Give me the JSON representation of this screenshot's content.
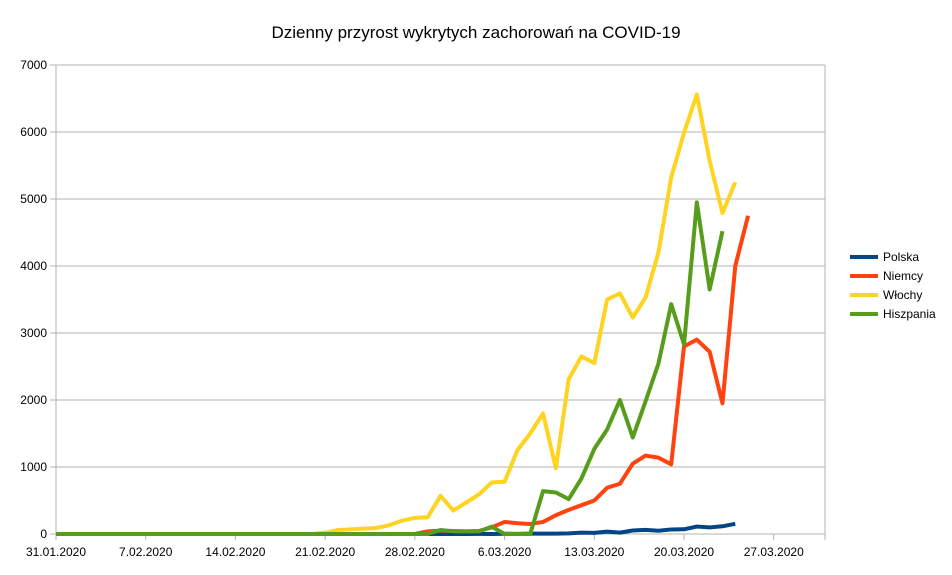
{
  "chart_data": {
    "type": "line",
    "title": "Dzienny przyrost wykrytych zachorowań na COVID-19",
    "xlabel": "",
    "ylabel": "",
    "x_start": "31.01.2020",
    "x_end": "31.03.2020",
    "xlim": [
      "31.01.2020",
      "31.03.2020"
    ],
    "ylim": [
      0,
      7000
    ],
    "y_ticks": [
      "0",
      "1000",
      "2000",
      "3000",
      "4000",
      "5000",
      "6000",
      "7000"
    ],
    "x_ticks": [
      "31.01.2020",
      "7.02.2020",
      "14.02.2020",
      "21.02.2020",
      "28.02.2020",
      "6.03.2020",
      "13.03.2020",
      "20.03.2020",
      "27.03.2020"
    ],
    "grid": true,
    "legend_position": "right",
    "series": [
      {
        "name": "Polska",
        "color": "#004586",
        "points": [
          [
            "31.01.2020",
            0
          ],
          [
            "1.02.2020",
            0
          ],
          [
            "2.02.2020",
            0
          ],
          [
            "3.02.2020",
            0
          ],
          [
            "4.02.2020",
            0
          ],
          [
            "5.02.2020",
            0
          ],
          [
            "6.02.2020",
            0
          ],
          [
            "7.02.2020",
            0
          ],
          [
            "8.02.2020",
            0
          ],
          [
            "9.02.2020",
            0
          ],
          [
            "10.02.2020",
            0
          ],
          [
            "11.02.2020",
            0
          ],
          [
            "12.02.2020",
            0
          ],
          [
            "13.02.2020",
            0
          ],
          [
            "14.02.2020",
            0
          ],
          [
            "15.02.2020",
            0
          ],
          [
            "16.02.2020",
            0
          ],
          [
            "17.02.2020",
            0
          ],
          [
            "18.02.2020",
            0
          ],
          [
            "19.02.2020",
            0
          ],
          [
            "20.02.2020",
            0
          ],
          [
            "21.02.2020",
            0
          ],
          [
            "22.02.2020",
            0
          ],
          [
            "23.02.2020",
            0
          ],
          [
            "24.02.2020",
            0
          ],
          [
            "25.02.2020",
            0
          ],
          [
            "26.02.2020",
            0
          ],
          [
            "27.02.2020",
            0
          ],
          [
            "28.02.2020",
            0
          ],
          [
            "29.02.2020",
            0
          ],
          [
            "1.03.2020",
            0
          ],
          [
            "2.03.2020",
            0
          ],
          [
            "3.03.2020",
            0
          ],
          [
            "4.03.2020",
            1
          ],
          [
            "5.03.2020",
            0
          ],
          [
            "6.03.2020",
            4
          ],
          [
            "7.03.2020",
            1
          ],
          [
            "8.03.2020",
            5
          ],
          [
            "9.03.2020",
            6
          ],
          [
            "10.03.2020",
            5
          ],
          [
            "11.03.2020",
            9
          ],
          [
            "12.03.2020",
            20
          ],
          [
            "13.03.2020",
            17
          ],
          [
            "14.03.2020",
            36
          ],
          [
            "15.03.2020",
            21
          ],
          [
            "16.03.2020",
            52
          ],
          [
            "17.03.2020",
            61
          ],
          [
            "18.03.2020",
            49
          ],
          [
            "19.03.2020",
            68
          ],
          [
            "20.03.2020",
            70
          ],
          [
            "21.03.2020",
            111
          ],
          [
            "22.03.2020",
            98
          ],
          [
            "23.03.2020",
            115
          ],
          [
            "24.03.2020",
            152
          ]
        ]
      },
      {
        "name": "Niemcy",
        "color": "#ff420e",
        "points": [
          [
            "31.01.2020",
            0
          ],
          [
            "1.02.2020",
            0
          ],
          [
            "2.02.2020",
            0
          ],
          [
            "3.02.2020",
            0
          ],
          [
            "4.02.2020",
            0
          ],
          [
            "5.02.2020",
            0
          ],
          [
            "6.02.2020",
            0
          ],
          [
            "7.02.2020",
            0
          ],
          [
            "8.02.2020",
            0
          ],
          [
            "9.02.2020",
            0
          ],
          [
            "10.02.2020",
            0
          ],
          [
            "11.02.2020",
            0
          ],
          [
            "12.02.2020",
            0
          ],
          [
            "13.02.2020",
            0
          ],
          [
            "14.02.2020",
            0
          ],
          [
            "15.02.2020",
            0
          ],
          [
            "16.02.2020",
            0
          ],
          [
            "17.02.2020",
            0
          ],
          [
            "18.02.2020",
            0
          ],
          [
            "19.02.2020",
            0
          ],
          [
            "20.02.2020",
            0
          ],
          [
            "21.02.2020",
            0
          ],
          [
            "22.02.2020",
            0
          ],
          [
            "23.02.2020",
            0
          ],
          [
            "24.02.2020",
            0
          ],
          [
            "25.02.2020",
            0
          ],
          [
            "26.02.2020",
            0
          ],
          [
            "27.02.2020",
            0
          ],
          [
            "28.02.2020",
            0
          ],
          [
            "29.02.2020",
            40
          ],
          [
            "1.03.2020",
            50
          ],
          [
            "2.03.2020",
            45
          ],
          [
            "3.03.2020",
            40
          ],
          [
            "4.03.2020",
            45
          ],
          [
            "5.03.2020",
            100
          ],
          [
            "6.03.2020",
            180
          ],
          [
            "7.03.2020",
            160
          ],
          [
            "8.03.2020",
            150
          ],
          [
            "9.03.2020",
            180
          ],
          [
            "10.03.2020",
            280
          ],
          [
            "11.03.2020",
            360
          ],
          [
            "12.03.2020",
            430
          ],
          [
            "13.03.2020",
            500
          ],
          [
            "14.03.2020",
            690
          ],
          [
            "15.03.2020",
            750
          ],
          [
            "16.03.2020",
            1050
          ],
          [
            "17.03.2020",
            1170
          ],
          [
            "18.03.2020",
            1140
          ],
          [
            "19.03.2020",
            1040
          ],
          [
            "20.03.2020",
            2800
          ],
          [
            "21.03.2020",
            2900
          ],
          [
            "22.03.2020",
            2720
          ],
          [
            "23.03.2020",
            1950
          ],
          [
            "24.03.2020",
            4000
          ],
          [
            "25.03.2020",
            4750
          ]
        ]
      },
      {
        "name": "Włochy",
        "color": "#ffd320",
        "points": [
          [
            "31.01.2020",
            0
          ],
          [
            "1.02.2020",
            0
          ],
          [
            "2.02.2020",
            0
          ],
          [
            "3.02.2020",
            0
          ],
          [
            "4.02.2020",
            0
          ],
          [
            "5.02.2020",
            0
          ],
          [
            "6.02.2020",
            0
          ],
          [
            "7.02.2020",
            0
          ],
          [
            "8.02.2020",
            0
          ],
          [
            "9.02.2020",
            0
          ],
          [
            "10.02.2020",
            0
          ],
          [
            "11.02.2020",
            0
          ],
          [
            "12.02.2020",
            0
          ],
          [
            "13.02.2020",
            0
          ],
          [
            "14.02.2020",
            0
          ],
          [
            "15.02.2020",
            0
          ],
          [
            "16.02.2020",
            0
          ],
          [
            "17.02.2020",
            0
          ],
          [
            "18.02.2020",
            0
          ],
          [
            "19.02.2020",
            0
          ],
          [
            "20.02.2020",
            0
          ],
          [
            "21.02.2020",
            20
          ],
          [
            "22.02.2020",
            60
          ],
          [
            "23.02.2020",
            70
          ],
          [
            "24.02.2020",
            80
          ],
          [
            "25.02.2020",
            90
          ],
          [
            "26.02.2020",
            130
          ],
          [
            "27.02.2020",
            200
          ],
          [
            "28.02.2020",
            240
          ],
          [
            "29.02.2020",
            250
          ],
          [
            "1.03.2020",
            570
          ],
          [
            "2.03.2020",
            350
          ],
          [
            "3.03.2020",
            470
          ],
          [
            "4.03.2020",
            590
          ],
          [
            "5.03.2020",
            770
          ],
          [
            "6.03.2020",
            780
          ],
          [
            "7.03.2020",
            1250
          ],
          [
            "8.03.2020",
            1500
          ],
          [
            "9.03.2020",
            1800
          ],
          [
            "10.03.2020",
            980
          ],
          [
            "11.03.2020",
            2310
          ],
          [
            "12.03.2020",
            2650
          ],
          [
            "13.03.2020",
            2550
          ],
          [
            "14.03.2020",
            3500
          ],
          [
            "15.03.2020",
            3590
          ],
          [
            "16.03.2020",
            3230
          ],
          [
            "17.03.2020",
            3530
          ],
          [
            "18.03.2020",
            4200
          ],
          [
            "19.03.2020",
            5320
          ],
          [
            "20.03.2020",
            5990
          ],
          [
            "21.03.2020",
            6560
          ],
          [
            "22.03.2020",
            5570
          ],
          [
            "23.03.2020",
            4790
          ],
          [
            "24.03.2020",
            5250
          ]
        ]
      },
      {
        "name": "Hiszpania",
        "color": "#579d1c",
        "points": [
          [
            "31.01.2020",
            0
          ],
          [
            "1.02.2020",
            0
          ],
          [
            "2.02.2020",
            0
          ],
          [
            "3.02.2020",
            0
          ],
          [
            "4.02.2020",
            0
          ],
          [
            "5.02.2020",
            0
          ],
          [
            "6.02.2020",
            0
          ],
          [
            "7.02.2020",
            0
          ],
          [
            "8.02.2020",
            0
          ],
          [
            "9.02.2020",
            0
          ],
          [
            "10.02.2020",
            0
          ],
          [
            "11.02.2020",
            0
          ],
          [
            "12.02.2020",
            0
          ],
          [
            "13.02.2020",
            0
          ],
          [
            "14.02.2020",
            0
          ],
          [
            "15.02.2020",
            0
          ],
          [
            "16.02.2020",
            0
          ],
          [
            "17.02.2020",
            0
          ],
          [
            "18.02.2020",
            0
          ],
          [
            "19.02.2020",
            0
          ],
          [
            "20.02.2020",
            0
          ],
          [
            "21.02.2020",
            0
          ],
          [
            "22.02.2020",
            0
          ],
          [
            "23.02.2020",
            0
          ],
          [
            "24.02.2020",
            0
          ],
          [
            "25.02.2020",
            0
          ],
          [
            "26.02.2020",
            0
          ],
          [
            "27.02.2020",
            0
          ],
          [
            "28.02.2020",
            0
          ],
          [
            "29.02.2020",
            0
          ],
          [
            "1.03.2020",
            60
          ],
          [
            "2.03.2020",
            40
          ],
          [
            "3.03.2020",
            40
          ],
          [
            "4.03.2020",
            40
          ],
          [
            "5.03.2020",
            110
          ],
          [
            "6.03.2020",
            0
          ],
          [
            "7.03.2020",
            0
          ],
          [
            "8.03.2020",
            0
          ],
          [
            "9.03.2020",
            640
          ],
          [
            "10.03.2020",
            620
          ],
          [
            "11.03.2020",
            520
          ],
          [
            "12.03.2020",
            830
          ],
          [
            "13.03.2020",
            1270
          ],
          [
            "14.03.2020",
            1560
          ],
          [
            "15.03.2020",
            2000
          ],
          [
            "16.03.2020",
            1440
          ],
          [
            "17.03.2020",
            1980
          ],
          [
            "18.03.2020",
            2540
          ],
          [
            "19.03.2020",
            3430
          ],
          [
            "20.03.2020",
            2830
          ],
          [
            "21.03.2020",
            4950
          ],
          [
            "22.03.2020",
            3650
          ],
          [
            "23.03.2020",
            4520
          ]
        ]
      }
    ]
  }
}
